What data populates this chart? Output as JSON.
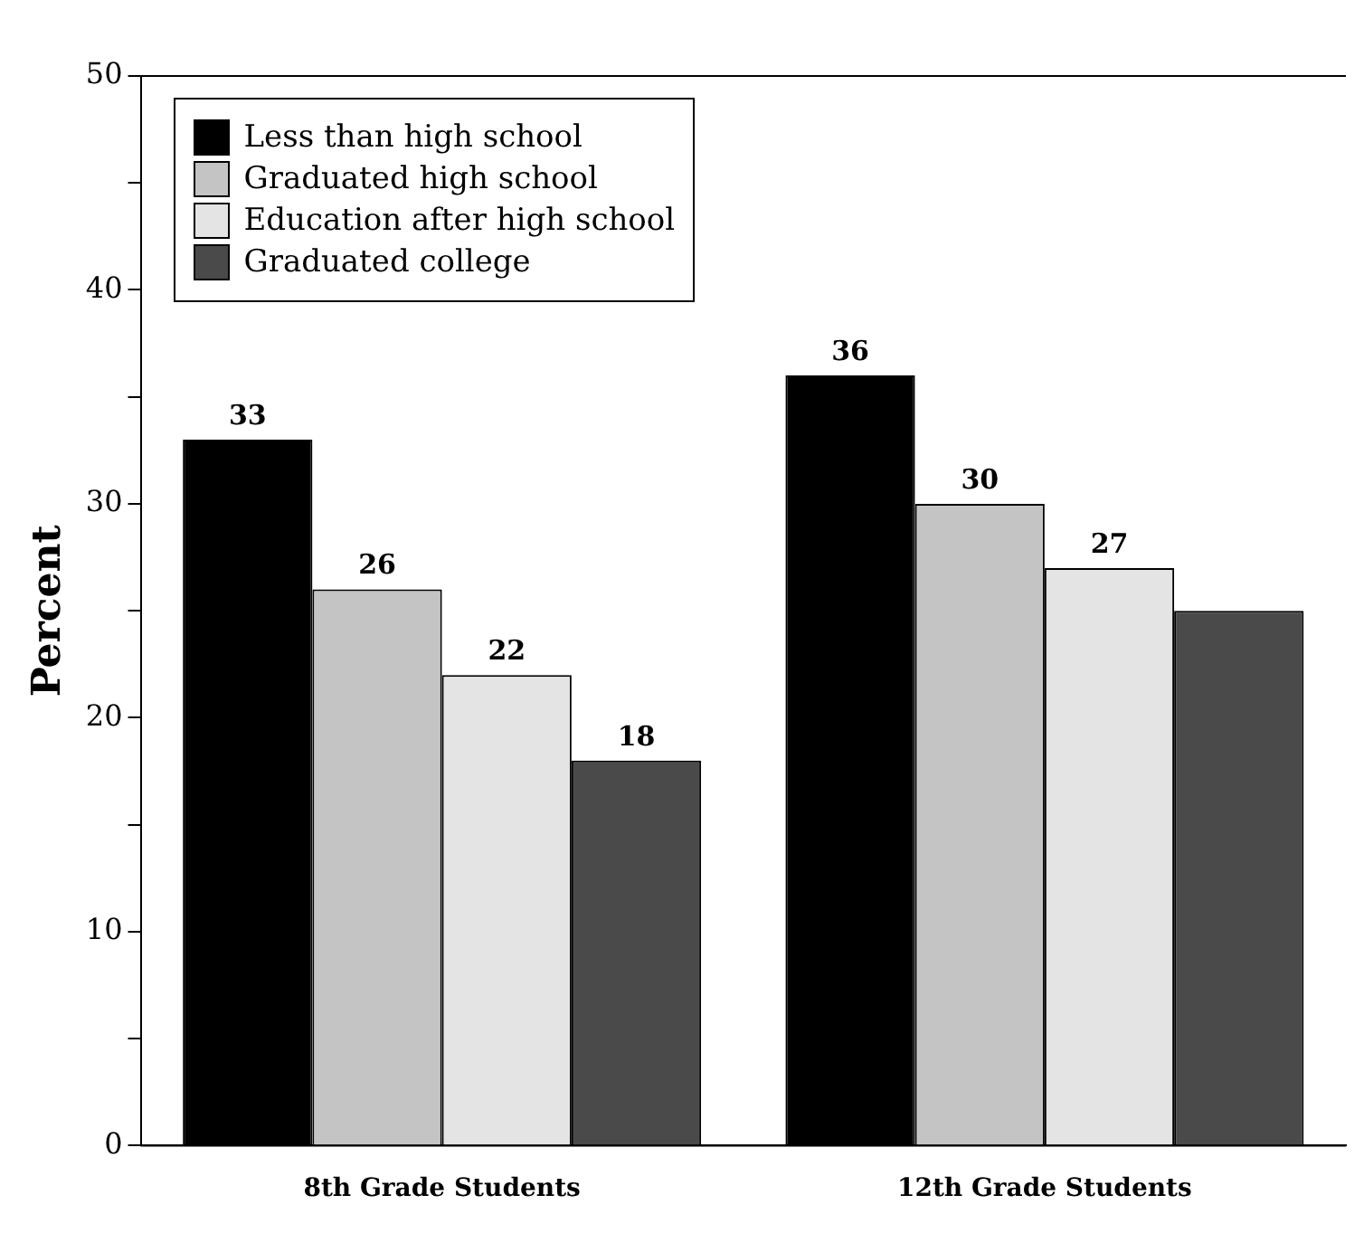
{
  "chart_data": {
    "type": "bar",
    "ylabel": "Percent",
    "categories": [
      "8th Grade Students",
      "12th Grade Students"
    ],
    "series": [
      {
        "name": "Less than high school",
        "color": "#000000",
        "values": [
          33,
          36
        ],
        "value_labels": [
          "33",
          "36"
        ]
      },
      {
        "name": "Graduated high school",
        "color": "#c4c4c4",
        "values": [
          26,
          30
        ],
        "value_labels": [
          "26",
          "30"
        ]
      },
      {
        "name": "Education after high school",
        "color": "#e4e4e4",
        "values": [
          22,
          27
        ],
        "value_labels": [
          "22",
          "27"
        ]
      },
      {
        "name": "Graduated college",
        "color": "#4a4a4a",
        "values": [
          18,
          25
        ],
        "value_labels": [
          "18",
          null
        ]
      }
    ],
    "ylim": [
      0,
      50
    ],
    "yticks": [
      0,
      {
        "value": 5,
        "label": null
      },
      10,
      {
        "value": 15,
        "label": null
      },
      20,
      {
        "value": 25,
        "label": null
      },
      30,
      {
        "value": 35,
        "label": null
      },
      40,
      {
        "value": 45,
        "label": null
      },
      50
    ],
    "grid": false,
    "legend": "top left"
  }
}
